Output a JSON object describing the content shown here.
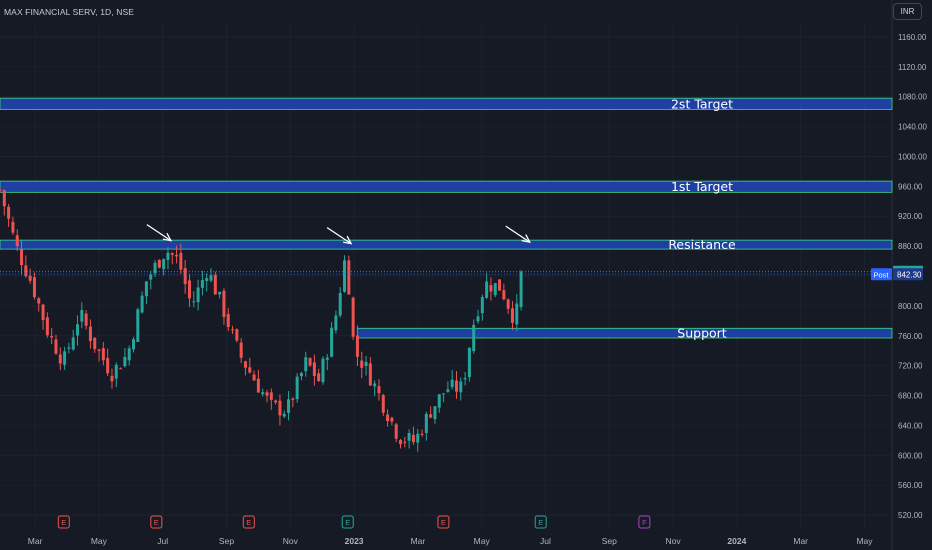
{
  "header": {
    "symbol": "MAX FINANCIAL SERV",
    "interval": "1D",
    "exchange": "NSE",
    "currency": "INR"
  },
  "colors": {
    "bg": "#161a25",
    "up": "#26a69a",
    "down": "#ef5350",
    "zone": "#1e45b0",
    "zone_edge": "#3ddc84",
    "grid": "#1e222d",
    "axis_text": "#b2b5be"
  },
  "chart_data": {
    "type": "candlestick",
    "ylim": [
      500,
      1180
    ],
    "y_ticks": [
      520,
      560,
      600,
      640,
      680,
      720,
      760,
      800,
      840,
      880,
      920,
      960,
      1000,
      1040,
      1080,
      1120,
      1160
    ],
    "x_ticks": [
      "Mar",
      "May",
      "Jul",
      "Sep",
      "Nov",
      "2023",
      "Mar",
      "May",
      "Jul",
      "Sep",
      "Nov",
      "2024",
      "Mar",
      "May"
    ],
    "last_price": "845.75",
    "post_label": "Post",
    "post_price": "842.30",
    "zones": [
      {
        "label": "2st Target",
        "from": 1063,
        "to": 1078
      },
      {
        "label": "1st Target",
        "from": 952,
        "to": 967
      },
      {
        "label": "Resistance",
        "from": 876,
        "to": 888
      },
      {
        "label": "Support",
        "from": 757,
        "to": 770
      }
    ],
    "key_points": [
      {
        "month": 0.0,
        "price": 955
      },
      {
        "month": 0.5,
        "price": 880
      },
      {
        "month": 1.0,
        "price": 830
      },
      {
        "month": 1.5,
        "price": 765
      },
      {
        "month": 2.0,
        "price": 725
      },
      {
        "month": 2.5,
        "price": 790
      },
      {
        "month": 3.0,
        "price": 745
      },
      {
        "month": 3.5,
        "price": 710
      },
      {
        "month": 4.0,
        "price": 735
      },
      {
        "month": 4.6,
        "price": 835
      },
      {
        "month": 5.2,
        "price": 875
      },
      {
        "month": 5.6,
        "price": 860
      },
      {
        "month": 6.0,
        "price": 800
      },
      {
        "month": 6.5,
        "price": 850
      },
      {
        "month": 7.0,
        "price": 795
      },
      {
        "month": 7.5,
        "price": 735
      },
      {
        "month": 8.0,
        "price": 700
      },
      {
        "month": 8.5,
        "price": 665
      },
      {
        "month": 9.0,
        "price": 660
      },
      {
        "month": 9.6,
        "price": 725
      },
      {
        "month": 10.0,
        "price": 700
      },
      {
        "month": 10.5,
        "price": 780
      },
      {
        "month": 10.85,
        "price": 872
      },
      {
        "month": 11.1,
        "price": 740
      },
      {
        "month": 11.5,
        "price": 715
      },
      {
        "month": 12.0,
        "price": 670
      },
      {
        "month": 12.5,
        "price": 625
      },
      {
        "month": 13.0,
        "price": 618
      },
      {
        "month": 13.5,
        "price": 660
      },
      {
        "month": 14.0,
        "price": 690
      },
      {
        "month": 14.5,
        "price": 690
      },
      {
        "month": 14.8,
        "price": 770
      },
      {
        "month": 15.2,
        "price": 830
      },
      {
        "month": 15.7,
        "price": 825
      },
      {
        "month": 16.1,
        "price": 785
      },
      {
        "month": 16.3,
        "price": 800
      },
      {
        "month": 16.45,
        "price": 846
      }
    ],
    "arrows": [
      {
        "month": 5.2,
        "price": 882
      },
      {
        "month": 10.85,
        "price": 878
      },
      {
        "month": 16.45,
        "price": 880
      }
    ],
    "events": [
      {
        "month": 2.0,
        "label": "E",
        "color": "#ef5350"
      },
      {
        "month": 4.9,
        "label": "E",
        "color": "#ef5350"
      },
      {
        "month": 7.8,
        "label": "E",
        "color": "#ef5350"
      },
      {
        "month": 10.9,
        "label": "E",
        "color": "#26a69a"
      },
      {
        "month": 13.9,
        "label": "E",
        "color": "#ef5350"
      },
      {
        "month": 16.95,
        "label": "E",
        "color": "#26a69a"
      },
      {
        "month": 20.2,
        "label": "F",
        "color": "#ab47bc"
      }
    ]
  }
}
